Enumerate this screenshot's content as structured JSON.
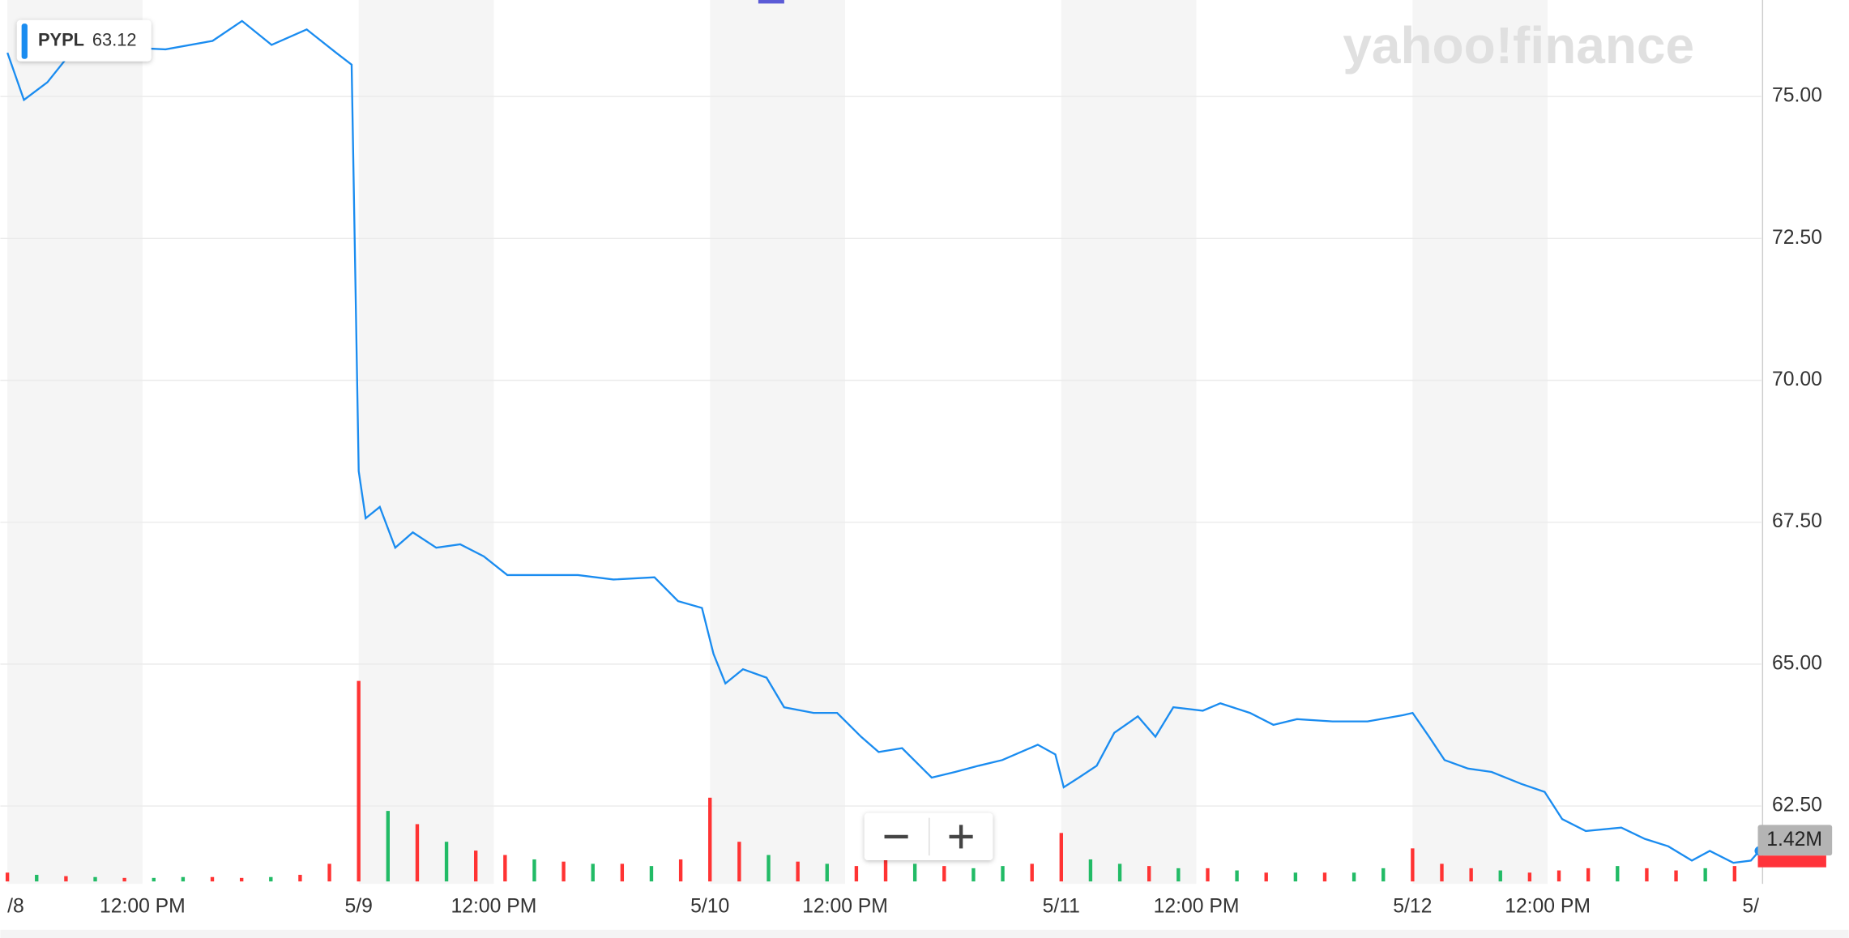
{
  "chart_data": [
    {
      "type": "line",
      "watermark": "yahoo!finance",
      "tooltip_value": 63.12,
      "x": [
        0,
        0.047,
        0.114,
        0.181,
        0.315,
        0.45,
        0.584,
        0.668,
        0.752,
        0.852,
        0.936,
        0.98,
        1,
        1.02,
        1.06,
        1.104,
        1.154,
        1.221,
        1.289,
        1.356,
        1.423,
        1.523,
        1.624,
        1.725,
        1.842,
        1.909,
        1.977,
        2.01,
        2.044,
        2.094,
        2.161,
        2.211,
        2.295,
        2.362,
        2.43,
        2.48,
        2.547,
        2.631,
        2.698,
        2.765,
        2.832,
        2.933,
        2.983,
        3.007,
        3.05,
        3.101,
        3.151,
        3.218,
        3.268,
        3.319,
        3.403,
        3.453,
        3.537,
        3.604,
        3.671,
        3.772,
        3.872,
        3.973,
        4,
        4.047,
        4.091,
        4.158,
        4.225,
        4.309,
        4.376,
        4.426,
        4.493,
        4.594,
        4.661,
        4.728,
        4.795,
        4.846,
        4.913,
        4.963,
        4.987
      ],
      "series": [
        {
          "name": "PYPL",
          "color": "#1a8cf0",
          "values": [
            75.77,
            74.94,
            75.25,
            75.77,
            75.87,
            75.83,
            75.98,
            76.33,
            75.91,
            76.18,
            75.77,
            75.56,
            68.4,
            67.57,
            67.77,
            67.05,
            67.32,
            67.05,
            67.11,
            66.9,
            66.57,
            66.57,
            66.57,
            66.49,
            66.53,
            66.11,
            65.99,
            65.18,
            64.66,
            64.91,
            64.76,
            64.24,
            64.14,
            64.14,
            63.72,
            63.45,
            63.52,
            63.0,
            63.1,
            63.21,
            63.31,
            63.58,
            63.41,
            62.83,
            63.0,
            63.21,
            63.79,
            64.08,
            63.72,
            64.24,
            64.18,
            64.31,
            64.14,
            63.93,
            64.03,
            63.99,
            63.99,
            64.1,
            64.14,
            63.72,
            63.31,
            63.16,
            63.1,
            62.89,
            62.75,
            62.27,
            62.06,
            62.12,
            61.92,
            61.79,
            61.54,
            61.71,
            61.5,
            61.54,
            61.71
          ]
        }
      ],
      "xlim": [
        -0.02,
        4.993
      ],
      "ylim": [
        61.13,
        76.7
      ],
      "xticks": [
        {
          "value": 0,
          "label": "/8"
        },
        {
          "value": 0.3846,
          "label": "12:00 PM"
        },
        {
          "value": 1,
          "label": "5/9"
        },
        {
          "value": 1.3846,
          "label": "12:00 PM"
        },
        {
          "value": 2,
          "label": "5/10"
        },
        {
          "value": 2.3846,
          "label": "12:00 PM"
        },
        {
          "value": 3,
          "label": "5/11"
        },
        {
          "value": 3.3846,
          "label": "12:00 PM"
        },
        {
          "value": 4,
          "label": "5/12"
        },
        {
          "value": 4.3846,
          "label": "12:00 PM"
        },
        {
          "value": 5,
          "label": "5/"
        }
      ],
      "yticks": [
        {
          "value": 62.5,
          "label": "62.50"
        },
        {
          "value": 65,
          "label": "65.00"
        },
        {
          "value": 67.5,
          "label": "67.50"
        },
        {
          "value": 70,
          "label": "70.00"
        },
        {
          "value": 72.5,
          "label": "72.50"
        },
        {
          "value": 75,
          "label": "75.00"
        }
      ],
      "grid": true
    },
    {
      "type": "bar",
      "x": [
        0,
        0.0833,
        0.1667,
        0.25,
        0.3333,
        0.4167,
        0.5,
        0.5833,
        0.6667,
        0.75,
        0.8333,
        0.9167,
        1,
        1.0833,
        1.1667,
        1.25,
        1.3333,
        1.4167,
        1.5,
        1.5833,
        1.6667,
        1.75,
        1.8333,
        1.9167,
        2,
        2.0833,
        2.1667,
        2.25,
        2.3333,
        2.4167,
        2.5,
        2.5833,
        2.6667,
        2.75,
        2.8333,
        2.9167,
        3,
        3.0833,
        3.1667,
        3.25,
        3.3333,
        3.4167,
        3.5,
        3.5833,
        3.6667,
        3.75,
        3.8333,
        3.9167,
        4,
        4.0833,
        4.1667,
        4.25,
        4.3333,
        4.4167,
        4.5,
        4.5833,
        4.6667,
        4.75,
        4.8333,
        4.9167
      ],
      "values": [
        0.2,
        0.15,
        0.12,
        0.1,
        0.08,
        0.08,
        0.1,
        0.1,
        0.08,
        0.1,
        0.15,
        0.4,
        4.55,
        1.6,
        1.3,
        0.9,
        0.7,
        0.6,
        0.5,
        0.45,
        0.4,
        0.4,
        0.35,
        0.5,
        1.9,
        0.9,
        0.6,
        0.45,
        0.4,
        0.35,
        0.6,
        0.4,
        0.35,
        0.3,
        0.35,
        0.4,
        1.1,
        0.5,
        0.4,
        0.35,
        0.3,
        0.3,
        0.25,
        0.2,
        0.2,
        0.2,
        0.2,
        0.3,
        0.75,
        0.4,
        0.3,
        0.25,
        0.2,
        0.25,
        0.3,
        0.35,
        0.3,
        0.25,
        0.3,
        0.35
      ],
      "colors": [
        "#f33",
        "#2b6",
        "#f33",
        "#2b6",
        "#f33",
        "#2b6",
        "#2b6",
        "#f33",
        "#f33",
        "#2b6",
        "#f33",
        "#f33",
        "#f33",
        "#2b6",
        "#f33",
        "#2b6",
        "#f33",
        "#f33",
        "#2b6",
        "#f33",
        "#2b6",
        "#f33",
        "#2b6",
        "#f33",
        "#f33",
        "#f33",
        "#2b6",
        "#f33",
        "#2b6",
        "#f33",
        "#f33",
        "#2b6",
        "#f33",
        "#2b6",
        "#2b6",
        "#f33",
        "#f33",
        "#2b6",
        "#2b6",
        "#f33",
        "#2b6",
        "#f33",
        "#2b6",
        "#f33",
        "#2b6",
        "#f33",
        "#2b6",
        "#2b6",
        "#f33",
        "#f33",
        "#f33",
        "#2b6",
        "#f33",
        "#f33",
        "#f33",
        "#2b6",
        "#f33",
        "#f33",
        "#2b6",
        "#f33"
      ],
      "xlim": [
        -0.02,
        4.993
      ],
      "ylim": [
        0,
        20
      ],
      "current": {
        "value": 1.42,
        "label": "1.42M"
      }
    }
  ]
}
